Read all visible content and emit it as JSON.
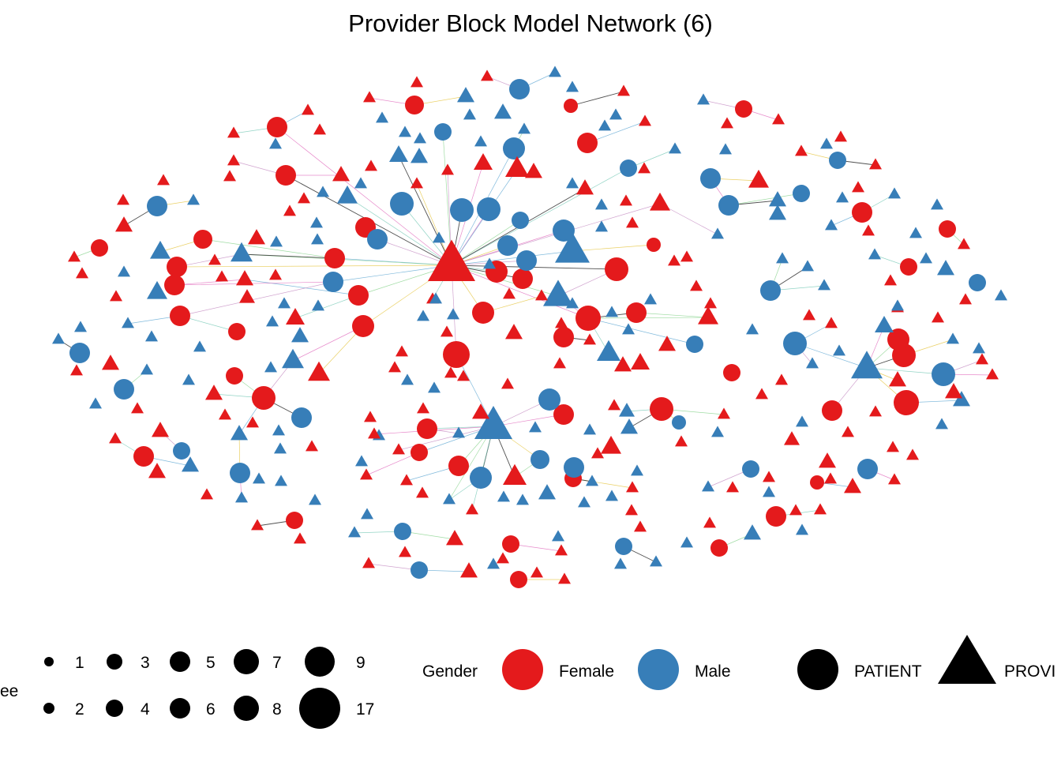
{
  "title": "Provider Block Model Network (6)",
  "colors": {
    "Female": "#e41a1c",
    "Male": "#377eb8"
  },
  "legend": {
    "degree_title": "ee",
    "degree_values": [
      "1",
      "2",
      "3",
      "4",
      "5",
      "6",
      "7",
      "8",
      "9",
      "17"
    ],
    "gender_title": "Gender",
    "gender_items": [
      "Female",
      "Male"
    ],
    "type_items": [
      "PATIENT",
      "PROVI"
    ]
  },
  "chart_data": {
    "type": "network",
    "title": "Provider Block Model Network (6)",
    "node_color": "gender",
    "node_shape": "type",
    "node_size": "degree",
    "genders": [
      "Female",
      "Male"
    ],
    "types": [
      "PATIENT",
      "PROVIDER"
    ],
    "degree_legend": [
      1,
      2,
      3,
      4,
      5,
      6,
      7,
      8,
      9,
      17
    ]
  }
}
